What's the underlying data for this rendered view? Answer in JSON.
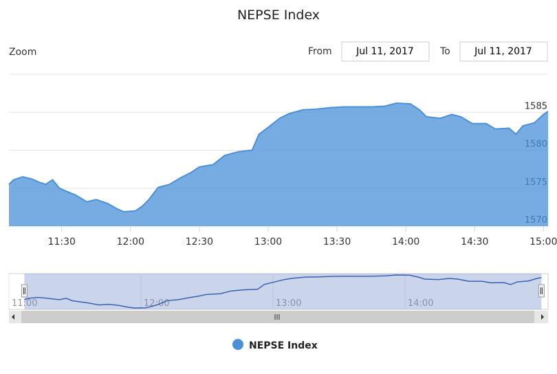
{
  "chart_data": {
    "type": "area",
    "title": "NEPSE Index",
    "range_selector": {
      "zoom_label": "Zoom",
      "from_label": "From",
      "from": "Jul 11, 2017",
      "to_label": "To",
      "to": "Jul 11, 2017"
    },
    "x": [
      667,
      669,
      673,
      677,
      680,
      683,
      686,
      689,
      692,
      696,
      701,
      705,
      710,
      714,
      717,
      722,
      725,
      728,
      732,
      737,
      742,
      746,
      750,
      756,
      761,
      767,
      773,
      776,
      780,
      785,
      789,
      795,
      801,
      807,
      813,
      819,
      825,
      831,
      836,
      842,
      846,
      849,
      855,
      860,
      864,
      869,
      875,
      879,
      885,
      888,
      891,
      896,
      900,
      902
    ],
    "series": [
      {
        "name": "NEPSE Index",
        "color": "#4a90d9",
        "values": [
          1575.5,
          1576.1,
          1576.5,
          1576.2,
          1575.8,
          1575.5,
          1576.1,
          1575.0,
          1574.6,
          1574.1,
          1573.2,
          1573.5,
          1573.0,
          1572.3,
          1571.9,
          1572.0,
          1572.6,
          1573.5,
          1575.1,
          1575.5,
          1576.4,
          1577.0,
          1577.8,
          1578.1,
          1579.3,
          1579.8,
          1580.0,
          1582.1,
          1583.0,
          1584.2,
          1584.8,
          1585.3,
          1585.4,
          1585.6,
          1585.7,
          1585.7,
          1585.7,
          1585.8,
          1586.2,
          1586.1,
          1585.3,
          1584.4,
          1584.2,
          1584.7,
          1584.4,
          1583.5,
          1583.5,
          1582.8,
          1582.9,
          1582.1,
          1583.2,
          1583.6,
          1584.7,
          1585.1
        ]
      }
    ],
    "xlim": [
      667,
      902
    ],
    "xticks": [
      {
        "value": 690,
        "label": "11:30"
      },
      {
        "value": 720,
        "label": "12:00"
      },
      {
        "value": 750,
        "label": "12:30"
      },
      {
        "value": 780,
        "label": "13:00"
      },
      {
        "value": 810,
        "label": "13:30"
      },
      {
        "value": 840,
        "label": "14:00"
      },
      {
        "value": 870,
        "label": "14:30"
      },
      {
        "value": 900,
        "label": "15:00"
      }
    ],
    "ylim": [
      1570,
      1590
    ],
    "yticks": [
      1570,
      1575,
      1580,
      1585
    ],
    "grid": true,
    "navigator": {
      "xlim": [
        660,
        905
      ],
      "xticks": [
        {
          "value": 660,
          "label": "11:00"
        },
        {
          "value": 720,
          "label": "12:00"
        },
        {
          "value": 780,
          "label": "13:00"
        },
        {
          "value": 840,
          "label": "14:00"
        }
      ]
    }
  }
}
